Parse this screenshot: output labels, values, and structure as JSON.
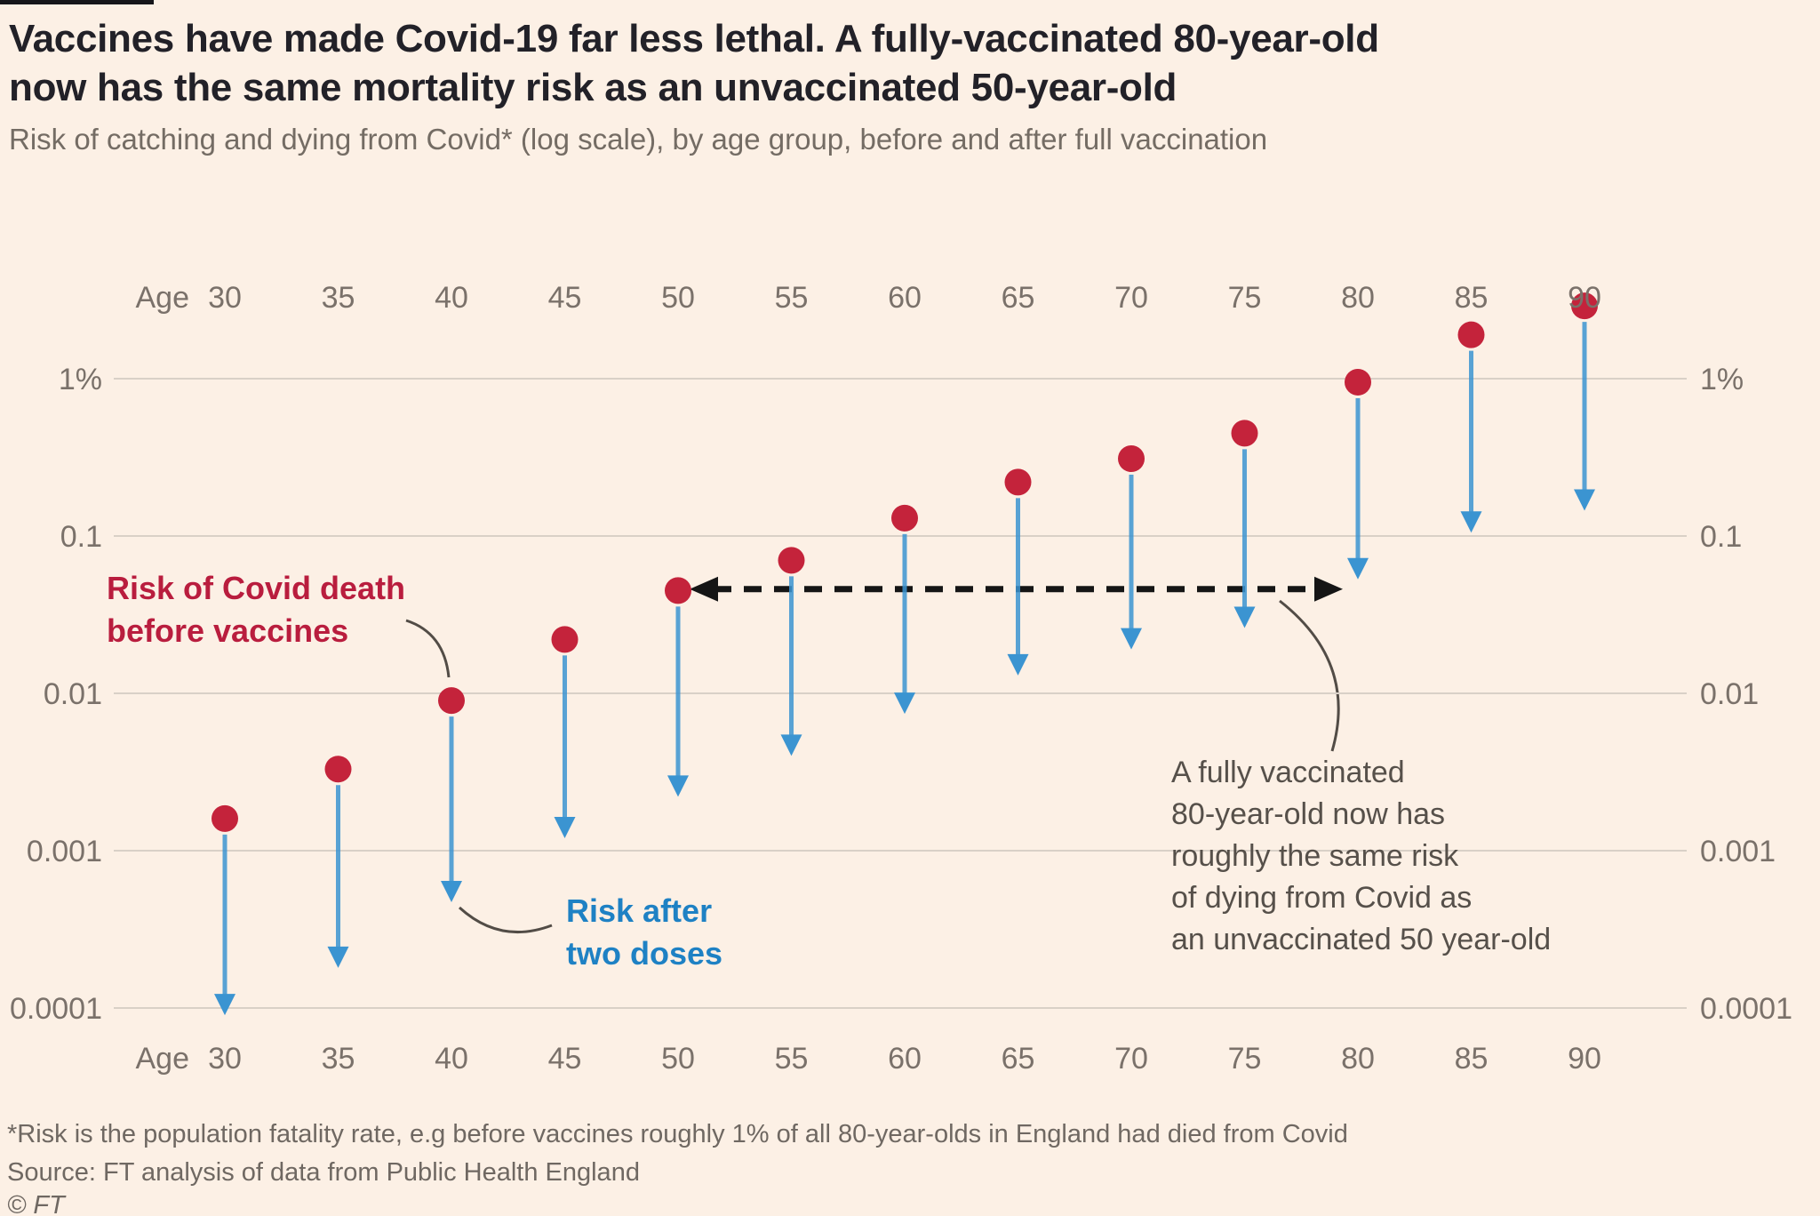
{
  "header": {
    "title": "Vaccines have made Covid-19 far less lethal. A fully-vaccinated 80-year-old\nnow has the same mortality risk as an unvaccinated 50-year-old",
    "subtitle": "Risk of catching and dying from Covid* (log scale), by age group, before and after full vaccination"
  },
  "annotations": {
    "before_label": "Risk of Covid death\nbefore vaccines",
    "after_label": "Risk after\ntwo doses",
    "equivalence_note": "A fully vaccinated\n80-year-old now has\nroughly the same risk\nof dying from Covid as\nan unvaccinated 50 year-old"
  },
  "footer": {
    "note": "*Risk is the population fatality rate, e.g before vaccines roughly 1% of all 80-year-olds in England had died from Covid",
    "source": "Source: FT analysis of data from Public Health England",
    "copyright": "© FT"
  },
  "colors": {
    "background": "#fcf0e5",
    "top_bar": "#16161a",
    "dot_red": "#c4233b",
    "arrow_blue": "#3b94d1",
    "before_label_red": "#b91d3e",
    "after_label_blue": "#1e81c4",
    "gridline": "#d9d0c7",
    "axis_text": "#7a716a",
    "connector_black": "#151515",
    "leader_gray": "#524c46",
    "title_text": "#222128",
    "subtitle_text": "#746c64",
    "note_text": "#56504a",
    "footer_text": "#6f6862"
  },
  "chart_data": {
    "type": "scatter",
    "subtype": "dot-to-arrow lollipop on log y-scale",
    "x_prefix_label": "Age",
    "categories": [
      30,
      35,
      40,
      45,
      50,
      55,
      60,
      65,
      70,
      75,
      80,
      85,
      90
    ],
    "series": [
      {
        "name": "Risk of Covid death before vaccines",
        "marker": "red dot",
        "values": [
          0.0016,
          0.0033,
          0.009,
          0.022,
          0.045,
          0.07,
          0.13,
          0.22,
          0.31,
          0.45,
          0.95,
          1.9,
          2.9
        ]
      },
      {
        "name": "Risk after two doses",
        "marker": "blue down-arrow tip",
        "values": [
          9e-05,
          0.00018,
          0.00047,
          0.0012,
          0.0022,
          0.004,
          0.0074,
          0.013,
          0.019,
          0.026,
          0.053,
          0.105,
          0.145
        ]
      }
    ],
    "y_axis": {
      "scale": "log",
      "unit": "percent of age group",
      "tick_labels": [
        "1%",
        "0.1",
        "0.01",
        "0.001",
        "0.0001"
      ],
      "tick_values": [
        1,
        0.1,
        0.01,
        0.001,
        0.0001
      ],
      "range": [
        8e-05,
        4
      ],
      "labels_on_both_sides": true
    },
    "x_axis": {
      "labels_on_top_and_bottom": true,
      "tick_step": 5
    },
    "grid": "horizontal only",
    "connector": {
      "description": "dashed double-headed arrow linking age-50 before-vaccine dot to age-80 after-two-doses arrow tip",
      "from_age": 50,
      "to_age": 80,
      "y_value": 0.046
    }
  }
}
